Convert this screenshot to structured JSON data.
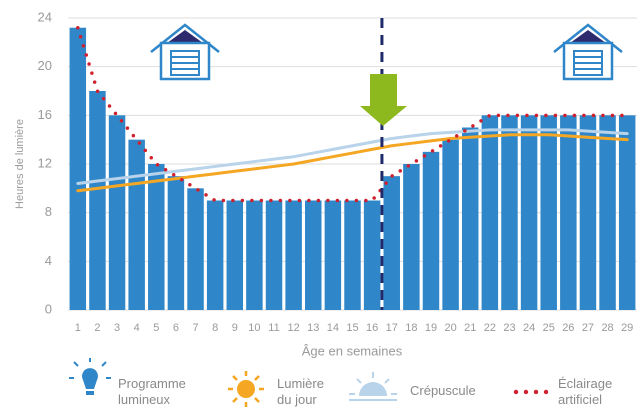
{
  "chart_data": {
    "type": "bar",
    "y_label": "Heures de lumière",
    "x_label": "Âge en semaines",
    "categories": [
      "1",
      "2",
      "3",
      "4",
      "5",
      "6",
      "7",
      "8",
      "9",
      "10",
      "11",
      "12",
      "13",
      "14",
      "15",
      "16",
      "17",
      "18",
      "19",
      "20",
      "21",
      "22",
      "23",
      "24",
      "25",
      "26",
      "27",
      "28",
      "29"
    ],
    "series": [
      {
        "name": "Programme lumineux",
        "type": "bar",
        "color": "#2f87c9",
        "values": [
          23.2,
          18,
          16,
          14,
          12,
          11,
          10,
          9,
          9,
          9,
          9,
          9,
          9,
          9,
          9,
          9,
          11,
          12,
          13,
          14,
          15,
          16,
          16,
          16,
          16,
          16,
          16,
          16,
          16
        ]
      },
      {
        "name": "Lumière du jour",
        "type": "line",
        "color": "#f5a623",
        "values": [
          9.8,
          10.0,
          10.2,
          10.4,
          10.6,
          10.8,
          11.0,
          11.2,
          11.4,
          11.6,
          11.8,
          12.0,
          12.3,
          12.6,
          12.9,
          13.2,
          13.5,
          13.7,
          13.9,
          14.1,
          14.2,
          14.3,
          14.4,
          14.4,
          14.4,
          14.3,
          14.2,
          14.1,
          14.0
        ]
      },
      {
        "name": "Crépuscule",
        "type": "line",
        "color": "#b8d3ea",
        "values": [
          10.4,
          10.6,
          10.8,
          11.0,
          11.2,
          11.4,
          11.6,
          11.8,
          12.0,
          12.2,
          12.4,
          12.6,
          12.9,
          13.2,
          13.5,
          13.8,
          14.1,
          14.3,
          14.5,
          14.6,
          14.7,
          14.8,
          14.8,
          14.8,
          14.8,
          14.8,
          14.7,
          14.6,
          14.5
        ]
      },
      {
        "name": "Éclairage artificiel",
        "type": "dotted",
        "color": "#d0202e",
        "values": [
          23.2,
          18,
          16,
          14,
          12,
          11,
          10,
          9,
          9,
          9,
          9,
          9,
          9,
          9,
          9,
          9,
          11,
          12,
          13,
          14,
          15,
          16,
          16,
          16,
          16,
          16,
          16,
          16,
          16
        ]
      }
    ],
    "ylim": [
      0,
      24
    ],
    "yticks": [
      0,
      4,
      8,
      12,
      16,
      20,
      24
    ],
    "grid": true
  }
}
